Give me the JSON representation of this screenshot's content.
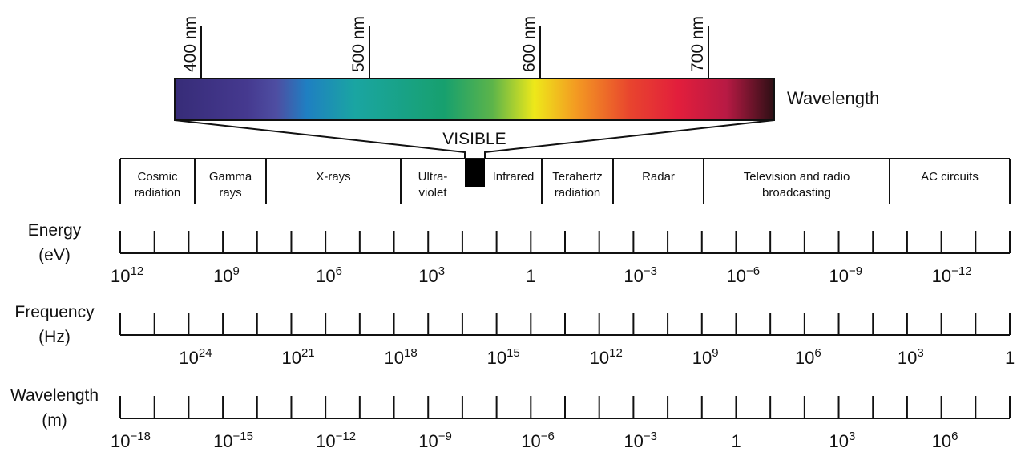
{
  "visible": {
    "ticks": [
      "400 nm",
      "500 nm",
      "600 nm",
      "700 nm"
    ],
    "axis_label": "Wavelength",
    "label": "VISIBLE"
  },
  "regions": [
    {
      "lines": [
        "Cosmic",
        "radiation"
      ]
    },
    {
      "lines": [
        "Gamma",
        "rays"
      ]
    },
    {
      "lines": [
        "X-rays"
      ]
    },
    {
      "lines": [
        "Ultra-",
        "violet"
      ]
    },
    {
      "lines": [
        "Infrared"
      ]
    },
    {
      "lines": [
        "Terahertz",
        "radiation"
      ]
    },
    {
      "lines": [
        "Radar"
      ]
    },
    {
      "lines": [
        "Television and radio",
        "broadcasting"
      ]
    },
    {
      "lines": [
        "AC circuits"
      ]
    }
  ],
  "scales": [
    {
      "title": [
        "Energy",
        "(eV)"
      ],
      "labels": [
        {
          "base": "10",
          "exp": "12"
        },
        {
          "base": "10",
          "exp": "9"
        },
        {
          "base": "10",
          "exp": "6"
        },
        {
          "base": "10",
          "exp": "3"
        },
        {
          "base": "1"
        },
        {
          "base": "10",
          "exp": "−3"
        },
        {
          "base": "10",
          "exp": "−6"
        },
        {
          "base": "10",
          "exp": "−9"
        },
        {
          "base": "10",
          "exp": "−12"
        }
      ]
    },
    {
      "title": [
        "Frequency",
        "(Hz)"
      ],
      "labels": [
        {
          "base": "10",
          "exp": "24"
        },
        {
          "base": "10",
          "exp": "21"
        },
        {
          "base": "10",
          "exp": "18"
        },
        {
          "base": "10",
          "exp": "15"
        },
        {
          "base": "10",
          "exp": "12"
        },
        {
          "base": "10",
          "exp": "9"
        },
        {
          "base": "10",
          "exp": "6"
        },
        {
          "base": "10",
          "exp": "3"
        },
        {
          "base": "1"
        }
      ]
    },
    {
      "title": [
        "Wavelength",
        "(m)"
      ],
      "labels": [
        {
          "base": "10",
          "exp": "−18"
        },
        {
          "base": "10",
          "exp": "−15"
        },
        {
          "base": "10",
          "exp": "−12"
        },
        {
          "base": "10",
          "exp": "−9"
        },
        {
          "base": "10",
          "exp": "−6"
        },
        {
          "base": "10",
          "exp": "−3"
        },
        {
          "base": "1"
        },
        {
          "base": "10",
          "exp": "3"
        },
        {
          "base": "10",
          "exp": "6"
        }
      ]
    }
  ]
}
